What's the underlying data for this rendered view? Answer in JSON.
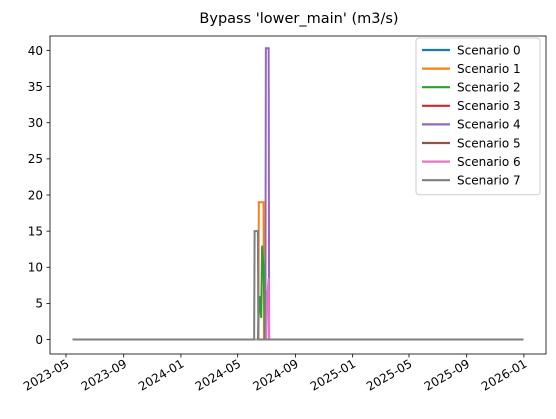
{
  "chart_data": {
    "type": "line",
    "title": "Bypass 'lower_main' (m3/s)",
    "xlabel": "",
    "ylabel": "",
    "x_domain": [
      "2023-05-15",
      "2025-12-31"
    ],
    "ylim": [
      -2,
      42
    ],
    "y_ticks": [
      0,
      5,
      10,
      15,
      20,
      25,
      30,
      35,
      40
    ],
    "x_ticks": [
      "2023-05",
      "2023-09",
      "2024-01",
      "2024-05",
      "2024-09",
      "2025-01",
      "2025-05",
      "2025-09",
      "2026-01"
    ],
    "grid": false,
    "legend_position": "top-right",
    "series": [
      {
        "name": "Scenario 0",
        "color": "#1f77b4",
        "points": [
          [
            "2023-05-15",
            0
          ],
          [
            "2025-12-31",
            0
          ]
        ]
      },
      {
        "name": "Scenario 1",
        "color": "#ff7f0e",
        "points": [
          [
            "2023-05-15",
            0
          ],
          [
            "2024-06-14",
            0
          ],
          [
            "2024-06-15",
            19
          ],
          [
            "2024-06-25",
            19
          ],
          [
            "2024-06-26",
            0
          ],
          [
            "2025-12-31",
            0
          ]
        ]
      },
      {
        "name": "Scenario 2",
        "color": "#2ca02c",
        "points": [
          [
            "2023-05-15",
            0
          ],
          [
            "2024-06-13",
            0
          ],
          [
            "2024-06-15",
            4
          ],
          [
            "2024-06-17",
            6
          ],
          [
            "2024-06-20",
            3
          ],
          [
            "2024-06-22",
            13
          ],
          [
            "2024-06-25",
            10
          ],
          [
            "2024-06-27",
            5
          ],
          [
            "2024-06-28",
            0
          ],
          [
            "2025-12-31",
            0
          ]
        ]
      },
      {
        "name": "Scenario 3",
        "color": "#d62728",
        "points": [
          [
            "2023-05-15",
            0
          ],
          [
            "2025-12-31",
            0
          ]
        ]
      },
      {
        "name": "Scenario 4",
        "color": "#9467bd",
        "points": [
          [
            "2023-05-15",
            0
          ],
          [
            "2024-06-29",
            0
          ],
          [
            "2024-06-30",
            40.3
          ],
          [
            "2024-07-06",
            40.3
          ],
          [
            "2024-07-07",
            0
          ],
          [
            "2025-12-31",
            0
          ]
        ]
      },
      {
        "name": "Scenario 5",
        "color": "#8c564b",
        "points": [
          [
            "2023-05-15",
            0
          ],
          [
            "2025-12-31",
            0
          ]
        ]
      },
      {
        "name": "Scenario 6",
        "color": "#e377c2",
        "points": [
          [
            "2023-05-15",
            0
          ],
          [
            "2024-07-01",
            0
          ],
          [
            "2024-07-03",
            6
          ],
          [
            "2024-07-06",
            8.5
          ],
          [
            "2024-07-07",
            0
          ],
          [
            "2025-12-31",
            0
          ]
        ]
      },
      {
        "name": "Scenario 7",
        "color": "#7f7f7f",
        "points": [
          [
            "2023-05-15",
            0
          ],
          [
            "2024-06-05",
            0
          ],
          [
            "2024-06-06",
            15
          ],
          [
            "2024-06-13",
            15
          ],
          [
            "2024-06-14",
            0
          ],
          [
            "2025-12-31",
            0
          ]
        ]
      }
    ]
  }
}
